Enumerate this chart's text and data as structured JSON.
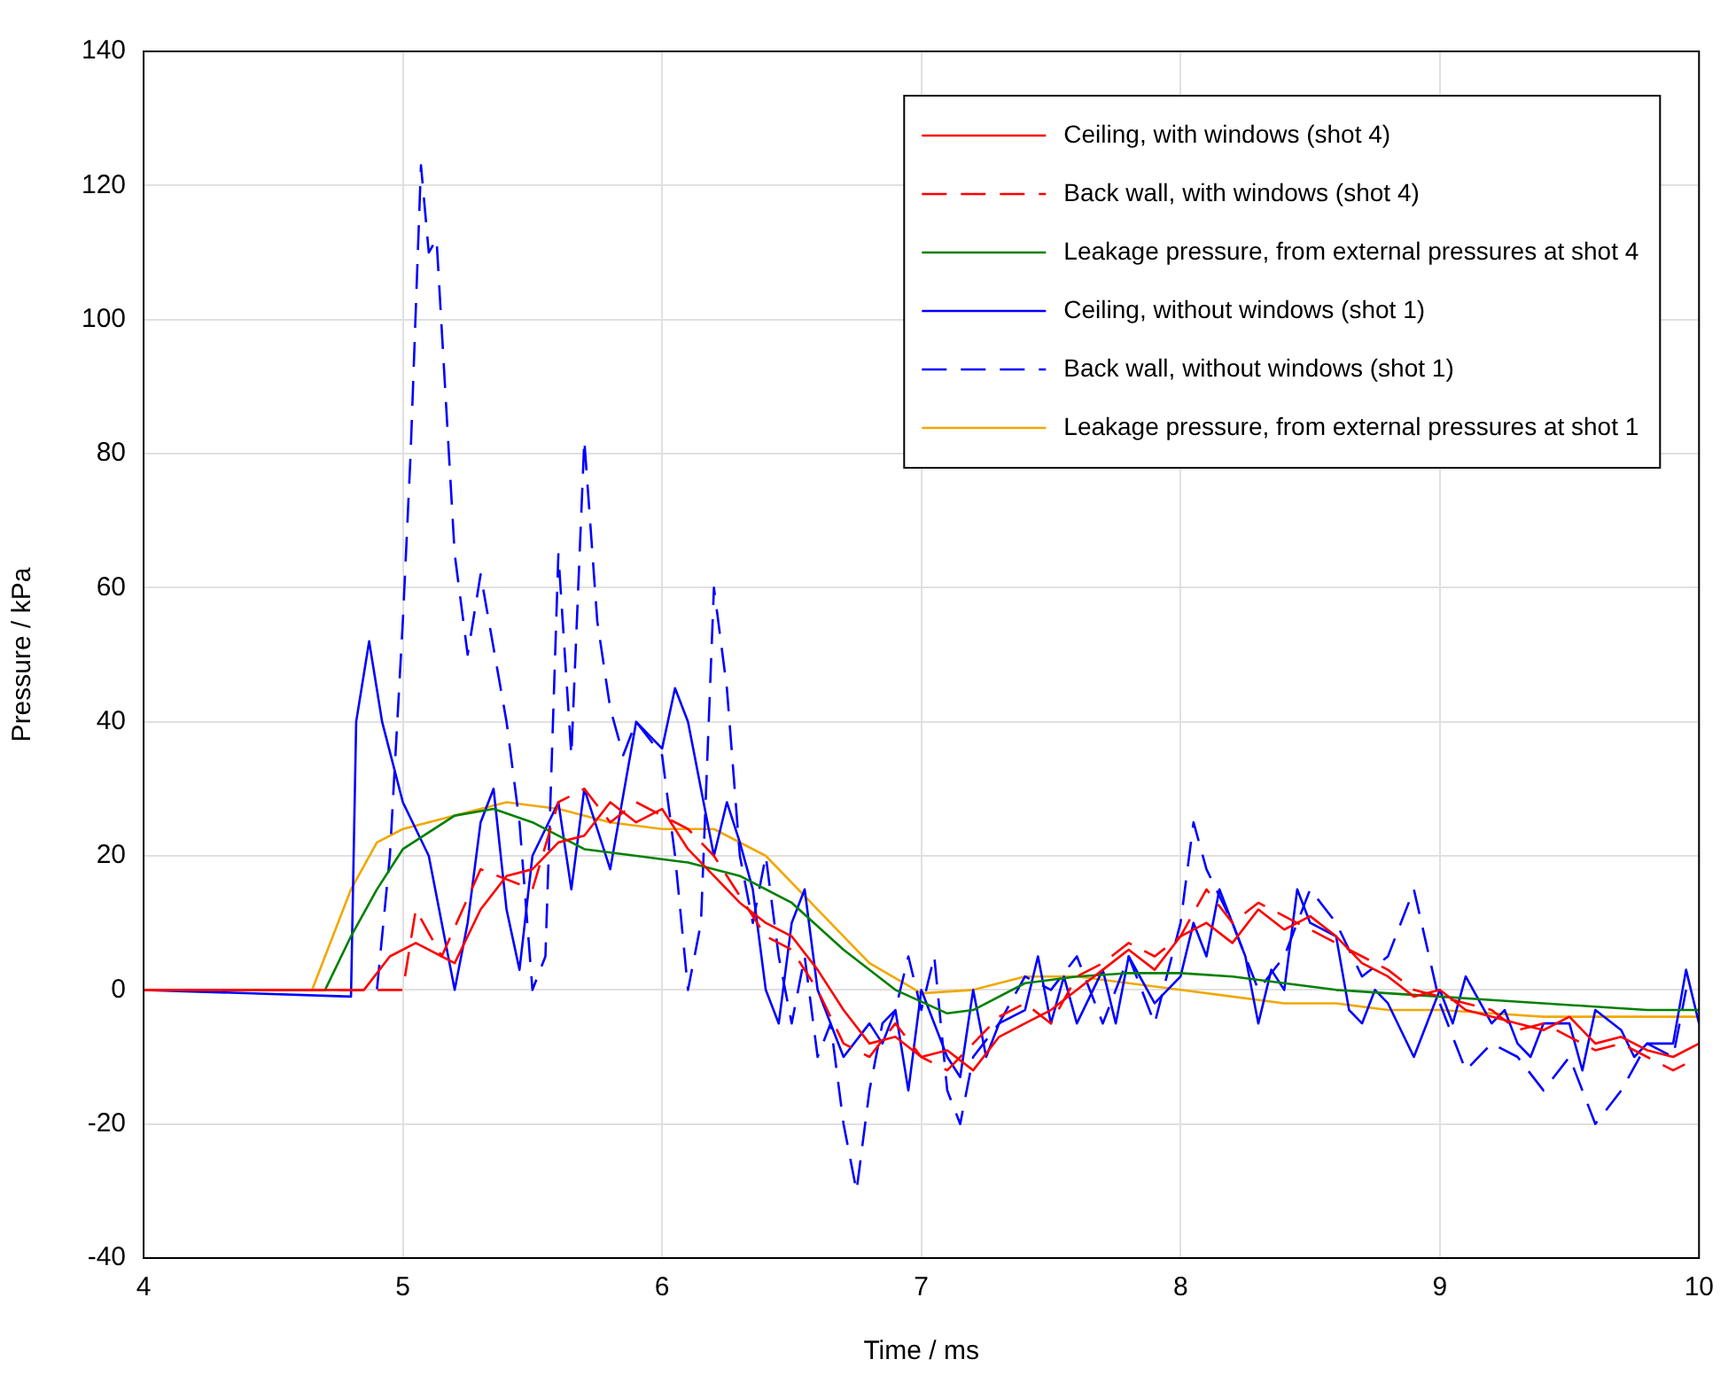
{
  "chart_data": {
    "type": "line",
    "xlabel": "Time / ms",
    "ylabel": "Pressure / kPa",
    "xlim": [
      4,
      10
    ],
    "xticks": [
      4,
      5,
      6,
      7,
      8,
      9,
      10
    ],
    "ylim": [
      -40,
      140
    ],
    "yticks": [
      -40,
      -20,
      0,
      20,
      40,
      60,
      80,
      100,
      120,
      140
    ],
    "grid": true,
    "legend": "top right",
    "marker": "none",
    "series": [
      {
        "name": "Ceiling, with windows (shot 4)",
        "color": "#ff0000",
        "line_style": "solid",
        "x": [
          4,
          4.5,
          4.85,
          4.95,
          5.05,
          5.2,
          5.3,
          5.4,
          5.5,
          5.6,
          5.7,
          5.8,
          5.9,
          6.0,
          6.1,
          6.2,
          6.3,
          6.4,
          6.5,
          6.6,
          6.7,
          6.8,
          6.9,
          7.0,
          7.1,
          7.2,
          7.3,
          7.4,
          7.5,
          7.6,
          7.7,
          7.8,
          7.9,
          8.0,
          8.1,
          8.2,
          8.3,
          8.4,
          8.5,
          8.6,
          8.7,
          8.8,
          8.9,
          9.0,
          9.1,
          9.2,
          9.3,
          9.4,
          9.5,
          9.6,
          9.7,
          9.8,
          9.9,
          10
        ],
        "values": [
          0,
          0,
          0,
          5,
          7,
          4,
          12,
          17,
          18,
          22,
          23,
          28,
          25,
          27,
          21,
          17,
          13,
          10,
          8,
          3,
          -3,
          -8,
          -7,
          -10,
          -9,
          -12,
          -7,
          -5,
          -3,
          0,
          3,
          6,
          3,
          8,
          10,
          7,
          12,
          9,
          11,
          8,
          4,
          2,
          -1,
          0,
          -3,
          -4,
          -5,
          -6,
          -4,
          -8,
          -7,
          -9,
          -10,
          -8
        ]
      },
      {
        "name": "Back wall, with windows (shot 4)",
        "color": "#ff0000",
        "line_style": "dashed",
        "x": [
          4,
          4.5,
          5.0,
          5.05,
          5.15,
          5.3,
          5.5,
          5.6,
          5.7,
          5.8,
          5.9,
          6.0,
          6.1,
          6.2,
          6.3,
          6.4,
          6.5,
          6.6,
          6.7,
          6.8,
          6.9,
          7.0,
          7.1,
          7.2,
          7.3,
          7.4,
          7.5,
          7.6,
          7.7,
          7.8,
          7.9,
          8.0,
          8.1,
          8.2,
          8.3,
          8.4,
          8.5,
          8.6,
          8.7,
          8.8,
          8.9,
          9.0,
          9.1,
          9.2,
          9.3,
          9.4,
          9.5,
          9.6,
          9.7,
          9.8,
          9.9,
          9.95
        ],
        "values": [
          0,
          0,
          0,
          12,
          5,
          18,
          15,
          28,
          30,
          25,
          28,
          26,
          24,
          20,
          14,
          8,
          6,
          0,
          -8,
          -10,
          -5,
          -10,
          -12,
          -8,
          -4,
          -2,
          -5,
          2,
          4,
          7,
          5,
          8,
          15,
          10,
          13,
          11,
          9,
          7,
          5,
          3,
          0,
          -1,
          -2,
          -3,
          -6,
          -5,
          -7,
          -9,
          -8,
          -10,
          -12,
          -11
        ]
      },
      {
        "name": "Leakage pressure, from external pressures at shot 4",
        "color": "#008000",
        "line_style": "solid",
        "x": [
          4,
          4.7,
          4.8,
          4.9,
          5.0,
          5.2,
          5.35,
          5.5,
          5.7,
          5.9,
          6.1,
          6.3,
          6.5,
          6.7,
          6.9,
          7.1,
          7.2,
          7.4,
          7.6,
          7.8,
          8.0,
          8.2,
          8.4,
          8.6,
          8.8,
          9.0,
          9.2,
          9.4,
          9.6,
          9.8,
          10
        ],
        "values": [
          0,
          0,
          8,
          15,
          21,
          26,
          27,
          25,
          21,
          20,
          19,
          17,
          13,
          6,
          0,
          -3.5,
          -3,
          1,
          2,
          2.5,
          2.5,
          2,
          1,
          0,
          -0.5,
          -1,
          -1.5,
          -2,
          -2.5,
          -3,
          -3
        ]
      },
      {
        "name": "Ceiling, without windows (shot 1)",
        "color": "#0000ff",
        "line_style": "solid",
        "x": [
          4,
          4.8,
          4.82,
          4.87,
          4.92,
          5.0,
          5.1,
          5.15,
          5.2,
          5.25,
          5.3,
          5.35,
          5.4,
          5.45,
          5.5,
          5.6,
          5.65,
          5.7,
          5.8,
          5.9,
          5.95,
          6.0,
          6.05,
          6.1,
          6.15,
          6.2,
          6.25,
          6.3,
          6.35,
          6.4,
          6.45,
          6.5,
          6.55,
          6.6,
          6.65,
          6.7,
          6.8,
          6.85,
          6.9,
          6.95,
          7.0,
          7.05,
          7.1,
          7.15,
          7.2,
          7.25,
          7.3,
          7.4,
          7.45,
          7.5,
          7.55,
          7.6,
          7.7,
          7.75,
          7.8,
          7.9,
          8.0,
          8.05,
          8.1,
          8.15,
          8.2,
          8.25,
          8.3,
          8.35,
          8.4,
          8.45,
          8.5,
          8.6,
          8.65,
          8.7,
          8.75,
          8.8,
          8.9,
          8.95,
          9.0,
          9.05,
          9.1,
          9.2,
          9.25,
          9.3,
          9.35,
          9.4,
          9.5,
          9.55,
          9.6,
          9.7,
          9.75,
          9.8,
          9.9,
          9.95,
          10
        ],
        "values": [
          0,
          -1,
          40,
          52,
          40,
          28,
          20,
          10,
          0,
          10,
          25,
          30,
          12,
          3,
          20,
          28,
          15,
          30,
          18,
          40,
          38,
          36,
          45,
          40,
          30,
          20,
          28,
          22,
          15,
          0,
          -5,
          10,
          15,
          0,
          -5,
          -10,
          -5,
          -8,
          -3,
          -15,
          0,
          -5,
          -10,
          -13,
          0,
          -10,
          -5,
          -3,
          5,
          -5,
          2,
          -5,
          3,
          -5,
          5,
          -2,
          2,
          10,
          5,
          15,
          10,
          5,
          -5,
          3,
          0,
          15,
          10,
          8,
          -3,
          -5,
          0,
          -2,
          -10,
          -5,
          0,
          -5,
          2,
          -5,
          -3,
          -8,
          -10,
          -5,
          -5,
          -12,
          -3,
          -6,
          -10,
          -8,
          -8,
          3,
          -5
        ]
      },
      {
        "name": "Back wall, without windows (shot 1)",
        "color": "#0000ff",
        "line_style": "dashed",
        "x": [
          4,
          4.9,
          4.95,
          5.0,
          5.03,
          5.07,
          5.1,
          5.13,
          5.2,
          5.25,
          5.3,
          5.4,
          5.45,
          5.5,
          5.55,
          5.6,
          5.65,
          5.7,
          5.75,
          5.8,
          5.85,
          5.9,
          6.0,
          6.05,
          6.1,
          6.15,
          6.2,
          6.25,
          6.3,
          6.35,
          6.4,
          6.45,
          6.5,
          6.55,
          6.6,
          6.65,
          6.7,
          6.75,
          6.8,
          6.85,
          6.9,
          6.95,
          7.0,
          7.05,
          7.1,
          7.15,
          7.2,
          7.3,
          7.4,
          7.5,
          7.6,
          7.7,
          7.8,
          7.9,
          8.0,
          8.05,
          8.1,
          8.2,
          8.3,
          8.4,
          8.5,
          8.6,
          8.7,
          8.8,
          8.9,
          9.0,
          9.1,
          9.2,
          9.3,
          9.4,
          9.5,
          9.6,
          9.7,
          9.8,
          9.9,
          9.95
        ],
        "values": [
          0,
          0,
          20,
          55,
          80,
          123,
          110,
          112,
          65,
          50,
          62,
          40,
          25,
          0,
          5,
          65,
          35,
          82,
          55,
          42,
          35,
          40,
          35,
          20,
          0,
          10,
          60,
          45,
          20,
          10,
          20,
          5,
          -5,
          5,
          -10,
          -5,
          -20,
          -30,
          -15,
          -5,
          -3,
          5,
          -3,
          5,
          -15,
          -20,
          -10,
          -5,
          2,
          0,
          5,
          -5,
          5,
          -5,
          10,
          25,
          18,
          10,
          0,
          5,
          15,
          10,
          2,
          5,
          15,
          -2,
          -12,
          -8,
          -10,
          -15,
          -10,
          -20,
          -15,
          -8,
          -10,
          0
        ]
      },
      {
        "name": "Leakage pressure, from external pressures at shot 1",
        "color": "#f0a800",
        "line_style": "solid",
        "x": [
          4,
          4.65,
          4.8,
          4.9,
          5.0,
          5.2,
          5.4,
          5.6,
          5.8,
          6.0,
          6.2,
          6.4,
          6.6,
          6.8,
          7.0,
          7.2,
          7.4,
          7.6,
          7.8,
          8.0,
          8.2,
          8.4,
          8.6,
          8.8,
          9.0,
          9.2,
          9.4,
          9.6,
          9.8,
          10
        ],
        "values": [
          0,
          0,
          15,
          22,
          24,
          26,
          28,
          27,
          25,
          24,
          24,
          20,
          12,
          4,
          -0.5,
          0,
          2,
          2,
          1,
          0,
          -1,
          -2,
          -2,
          -3,
          -3,
          -3.5,
          -4,
          -4,
          -4,
          -4
        ]
      }
    ]
  }
}
